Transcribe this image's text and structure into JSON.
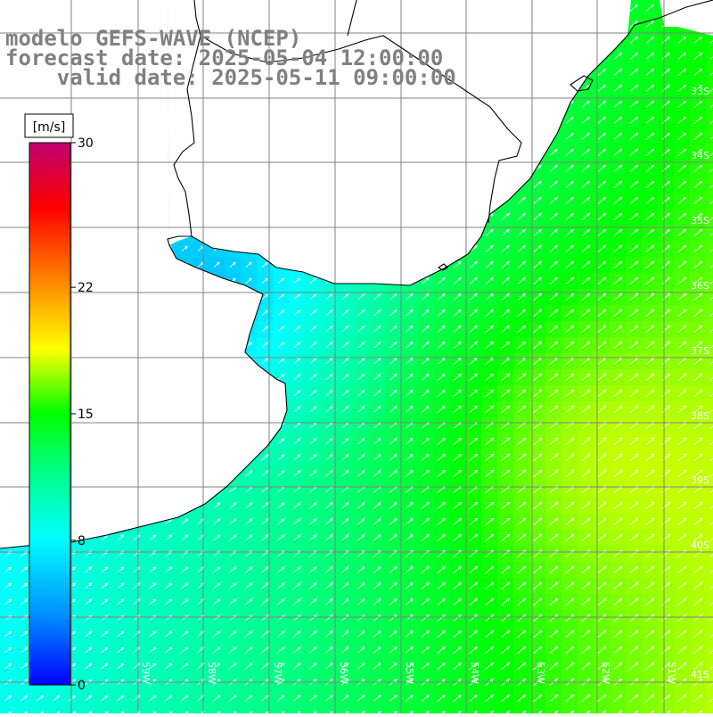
{
  "title": {
    "model": "modelo GEFS-WAVE (NCEP)",
    "forecast": "forecast date: 2025-05-04 12:00:00",
    "valid": "    valid date: 2025-05-11 09:00:00"
  },
  "colorbar": {
    "unit": "[m/s]",
    "ticks": [
      "30",
      "22",
      "15",
      "8",
      "0"
    ],
    "tick_values": [
      30,
      22,
      15,
      8,
      0
    ],
    "range": [
      0,
      30
    ],
    "colors": [
      "#0000ff",
      "#00a0ff",
      "#00ffff",
      "#00ff00",
      "#ffff00",
      "#ff8000",
      "#ff0000",
      "#c00070"
    ]
  },
  "map": {
    "lat_labels": [
      "33S",
      "34S",
      "35S",
      "36S",
      "37S",
      "38S",
      "39S",
      "40S",
      "41S"
    ],
    "lon_labels": [
      "59W",
      "58W",
      "57W",
      "56W",
      "55W",
      "54W",
      "53W",
      "52W",
      "51W"
    ],
    "land_color": "#ffffff",
    "grid_color": "#808080",
    "coast_color": "#000000",
    "arrow_color": "#ffffff",
    "variable": "wind speed and direction"
  }
}
